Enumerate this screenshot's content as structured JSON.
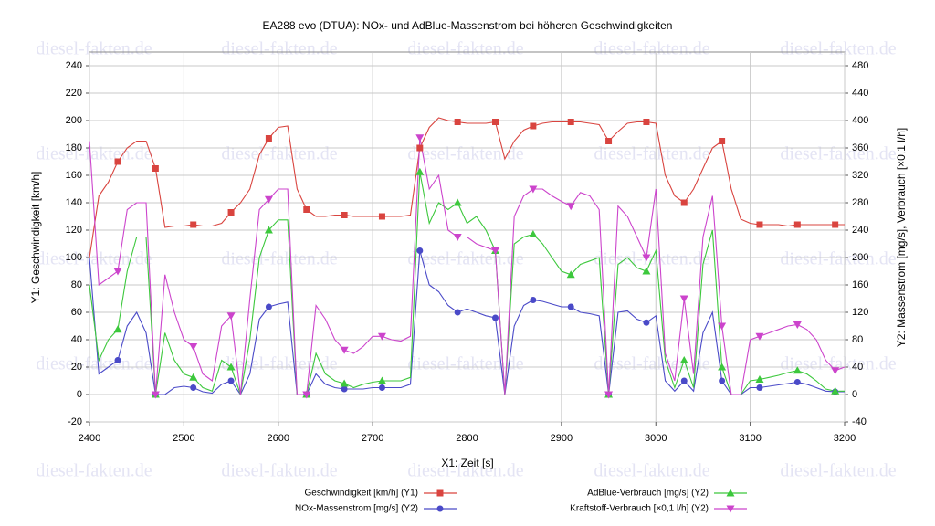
{
  "chart_data": {
    "type": "line",
    "title": "EA288 evo (DTUA): NOx- und AdBlue-Massenstrom bei höheren Geschwindigkeiten",
    "watermark": "diesel-fakten.de",
    "x_label": "X1: Zeit [s]",
    "y_label": "Y1: Geschwindigkeit [km/h]",
    "y2_label": "Y2: Massenstrom [mg/s], Verbrauch [×0,1 l/h]",
    "grid": true,
    "legend": "bottom",
    "xlim": [
      2400,
      3200
    ],
    "xticks": [
      2400,
      2500,
      2600,
      2700,
      2800,
      2900,
      3000,
      3100,
      3200
    ],
    "ylim": [
      -20,
      250
    ],
    "yticks": [
      -20,
      0,
      20,
      40,
      60,
      80,
      100,
      120,
      140,
      160,
      180,
      200,
      220,
      240
    ],
    "y2lim": [
      -40,
      500
    ],
    "y2ticks": [
      -40,
      0,
      40,
      80,
      120,
      160,
      200,
      240,
      280,
      320,
      360,
      400,
      440,
      480
    ],
    "x": [
      2400,
      2410,
      2420,
      2430,
      2440,
      2450,
      2460,
      2470,
      2480,
      2490,
      2500,
      2510,
      2520,
      2530,
      2540,
      2550,
      2560,
      2570,
      2580,
      2590,
      2600,
      2610,
      2620,
      2630,
      2640,
      2650,
      2660,
      2670,
      2680,
      2690,
      2700,
      2710,
      2720,
      2730,
      2740,
      2750,
      2760,
      2770,
      2780,
      2790,
      2800,
      2810,
      2820,
      2830,
      2840,
      2850,
      2860,
      2870,
      2880,
      2890,
      2900,
      2910,
      2920,
      2930,
      2940,
      2950,
      2960,
      2970,
      2980,
      2990,
      3000,
      3010,
      3020,
      3030,
      3040,
      3050,
      3060,
      3070,
      3080,
      3090,
      3100,
      3110,
      3120,
      3130,
      3140,
      3150,
      3160,
      3170,
      3180,
      3190,
      3200
    ],
    "series": [
      {
        "name": "Geschwindigkeit [km/h] (Y1)",
        "color": "#d9443f",
        "marker": "square",
        "values": [
          100,
          145,
          155,
          170,
          180,
          185,
          185,
          165,
          122,
          123,
          123,
          124,
          123,
          123,
          125,
          133,
          140,
          150,
          175,
          187,
          195,
          196,
          150,
          135,
          130,
          130,
          131,
          131,
          130,
          130,
          130,
          130,
          130,
          130,
          131,
          180,
          195,
          202,
          200,
          199,
          198,
          198,
          198,
          199,
          172,
          185,
          193,
          196,
          198,
          199,
          199,
          199,
          199,
          198,
          197,
          185,
          192,
          198,
          199,
          199,
          198,
          160,
          145,
          140,
          150,
          165,
          180,
          185,
          150,
          128,
          125,
          124,
          124,
          124,
          123,
          124,
          124,
          124,
          124,
          124,
          124
        ]
      },
      {
        "name": "NOx-Massenstrom [mg/s] (Y2)",
        "color": "#4a4ac8",
        "marker": "circle",
        "axis": "y2",
        "values": [
          200,
          30,
          40,
          50,
          100,
          120,
          90,
          0,
          0,
          10,
          12,
          10,
          4,
          2,
          15,
          20,
          0,
          30,
          110,
          128,
          132,
          135,
          0,
          0,
          30,
          15,
          10,
          8,
          8,
          8,
          10,
          10,
          10,
          10,
          15,
          210,
          160,
          150,
          130,
          120,
          125,
          120,
          115,
          112,
          0,
          100,
          130,
          138,
          136,
          132,
          128,
          128,
          120,
          118,
          115,
          0,
          120,
          122,
          110,
          105,
          115,
          20,
          5,
          20,
          5,
          90,
          120,
          20,
          0,
          0,
          10,
          10,
          12,
          14,
          16,
          18,
          15,
          10,
          5,
          4,
          4
        ]
      },
      {
        "name": "AdBlue-Verbrauch [mg/s] (Y2)",
        "color": "#3cc83c",
        "marker": "triangle",
        "axis": "y2",
        "values": [
          160,
          50,
          80,
          95,
          180,
          230,
          230,
          0,
          90,
          50,
          30,
          25,
          10,
          5,
          50,
          40,
          0,
          80,
          200,
          240,
          255,
          255,
          0,
          0,
          60,
          30,
          20,
          16,
          10,
          15,
          18,
          20,
          20,
          20,
          25,
          325,
          250,
          280,
          270,
          280,
          250,
          260,
          240,
          210,
          0,
          220,
          230,
          234,
          220,
          200,
          180,
          175,
          190,
          195,
          200,
          0,
          190,
          200,
          185,
          180,
          210,
          50,
          10,
          50,
          10,
          190,
          240,
          40,
          0,
          0,
          20,
          22,
          25,
          28,
          32,
          35,
          30,
          20,
          8,
          5,
          5
        ]
      },
      {
        "name": "Kraftstoff-Verbrauch [×0,1 l/h] (Y2)",
        "color": "#cc44cc",
        "marker": "triangle-down",
        "axis": "y2",
        "values": [
          370,
          160,
          170,
          180,
          270,
          280,
          280,
          0,
          175,
          120,
          80,
          70,
          30,
          20,
          100,
          115,
          0,
          140,
          270,
          285,
          300,
          300,
          0,
          0,
          130,
          110,
          80,
          65,
          60,
          70,
          85,
          85,
          80,
          78,
          85,
          375,
          300,
          320,
          240,
          230,
          230,
          220,
          215,
          210,
          0,
          260,
          290,
          300,
          300,
          290,
          282,
          275,
          295,
          290,
          270,
          0,
          275,
          260,
          230,
          200,
          300,
          60,
          20,
          140,
          30,
          230,
          290,
          100,
          0,
          0,
          80,
          85,
          90,
          95,
          100,
          102,
          95,
          80,
          50,
          35,
          40
        ]
      }
    ]
  }
}
